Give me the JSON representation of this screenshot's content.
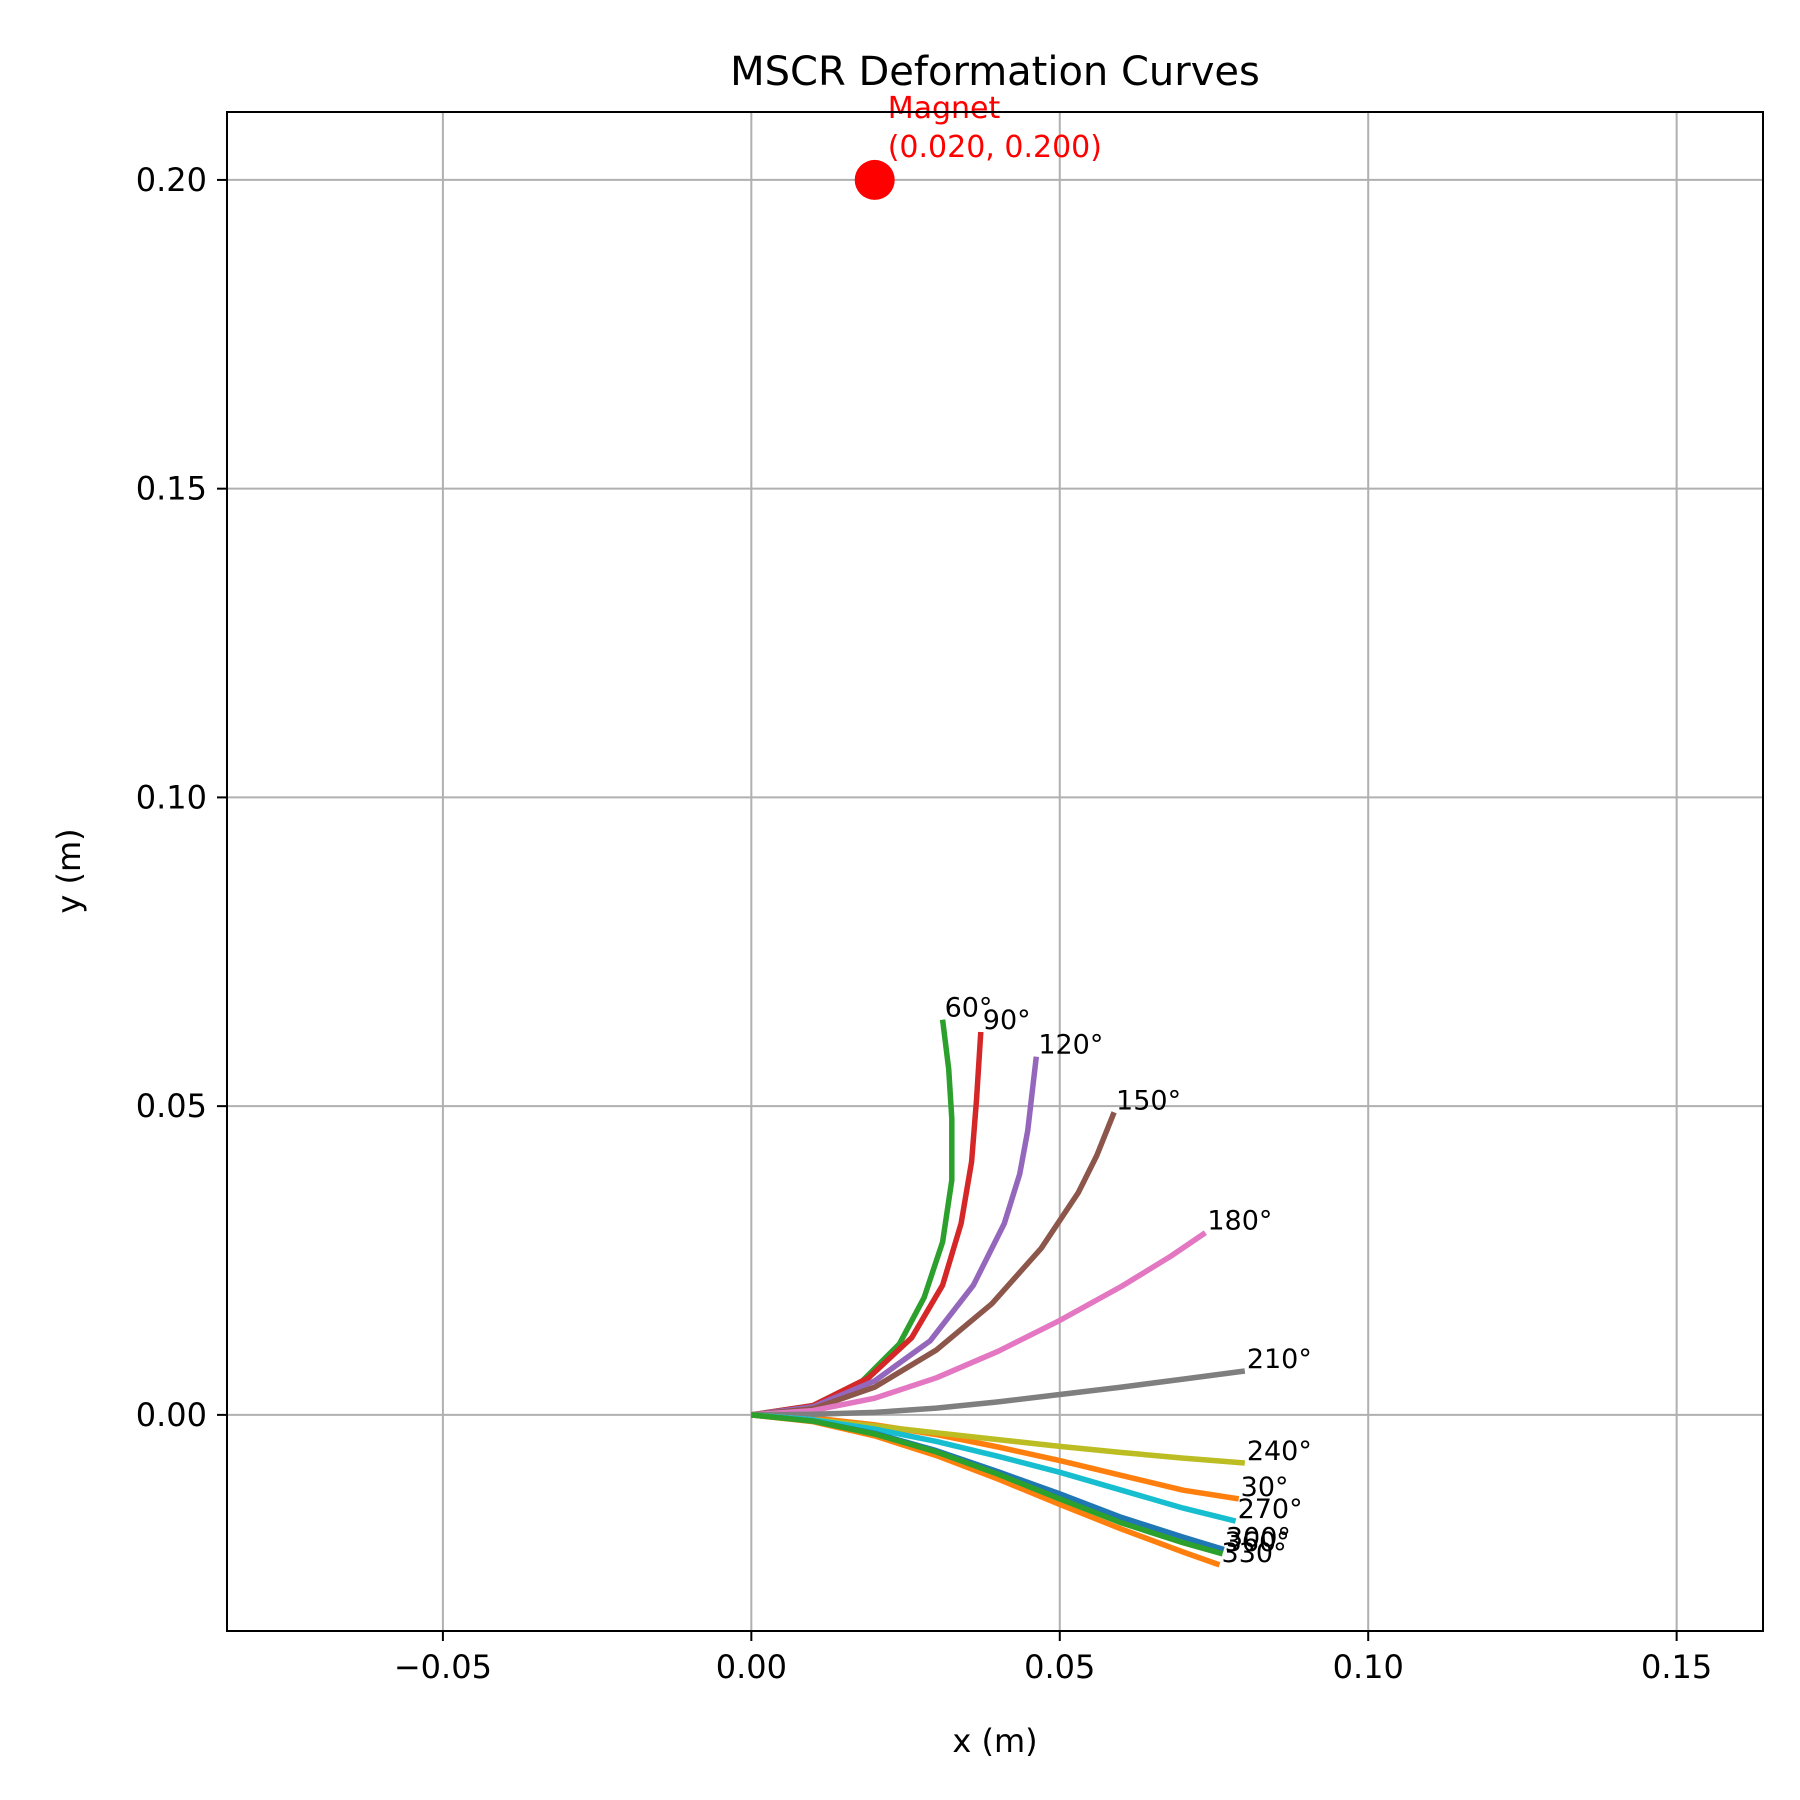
{
  "chart_data": {
    "type": "line",
    "title": "MSCR Deformation Curves",
    "xlabel": "x (m)",
    "ylabel": "y (m)",
    "xlim": [
      -0.085,
      0.164
    ],
    "ylim": [
      -0.035,
      0.211
    ],
    "xticks": [
      -0.05,
      0.0,
      0.05,
      0.1,
      0.15
    ],
    "xtick_labels": [
      "−0.05",
      "0.00",
      "0.05",
      "0.10",
      "0.15"
    ],
    "yticks": [
      0.0,
      0.05,
      0.1,
      0.15,
      0.2
    ],
    "ytick_labels": [
      "0.00",
      "0.05",
      "0.10",
      "0.15",
      "0.20"
    ],
    "grid": true,
    "magnet": {
      "x": 0.02,
      "y": 0.2,
      "label_line1": "Magnet",
      "label_line2": "(0.020, 0.200)",
      "color": "#ff0000"
    },
    "series": [
      {
        "name": "30°",
        "color": "#ff7f0e",
        "points": [
          [
            0,
            0
          ],
          [
            0.01,
            -0.0005
          ],
          [
            0.02,
            -0.0016
          ],
          [
            0.03,
            -0.0032
          ],
          [
            0.04,
            -0.0052
          ],
          [
            0.05,
            -0.0074
          ],
          [
            0.06,
            -0.0098
          ],
          [
            0.07,
            -0.0122
          ],
          [
            0.079,
            -0.0136
          ]
        ]
      },
      {
        "name": "60°",
        "color": "#2ca02c",
        "points": [
          [
            0,
            0
          ],
          [
            0.01,
            0.0015
          ],
          [
            0.018,
            0.0055
          ],
          [
            0.024,
            0.0115
          ],
          [
            0.028,
            0.019
          ],
          [
            0.031,
            0.028
          ],
          [
            0.0325,
            0.038
          ],
          [
            0.0325,
            0.048
          ],
          [
            0.032,
            0.056
          ],
          [
            0.031,
            0.064
          ]
        ]
      },
      {
        "name": "90°",
        "color": "#d62728",
        "points": [
          [
            0,
            0
          ],
          [
            0.01,
            0.0015
          ],
          [
            0.019,
            0.006
          ],
          [
            0.026,
            0.0125
          ],
          [
            0.031,
            0.021
          ],
          [
            0.034,
            0.031
          ],
          [
            0.0357,
            0.041
          ],
          [
            0.0365,
            0.051
          ],
          [
            0.0372,
            0.062
          ]
        ]
      },
      {
        "name": "120°",
        "color": "#9467bd",
        "points": [
          [
            0,
            0
          ],
          [
            0.01,
            0.0013
          ],
          [
            0.02,
            0.0055
          ],
          [
            0.029,
            0.012
          ],
          [
            0.036,
            0.021
          ],
          [
            0.041,
            0.031
          ],
          [
            0.0435,
            0.039
          ],
          [
            0.0448,
            0.046
          ],
          [
            0.0462,
            0.058
          ]
        ]
      },
      {
        "name": "150°",
        "color": "#8c564b",
        "points": [
          [
            0,
            0
          ],
          [
            0.01,
            0.001
          ],
          [
            0.02,
            0.0045
          ],
          [
            0.03,
            0.0105
          ],
          [
            0.039,
            0.018
          ],
          [
            0.047,
            0.027
          ],
          [
            0.053,
            0.036
          ],
          [
            0.056,
            0.042
          ],
          [
            0.0588,
            0.049
          ]
        ]
      },
      {
        "name": "180°",
        "color": "#e377c2",
        "points": [
          [
            0,
            0
          ],
          [
            0.01,
            0.0007
          ],
          [
            0.02,
            0.0027
          ],
          [
            0.03,
            0.006
          ],
          [
            0.04,
            0.0103
          ],
          [
            0.05,
            0.0153
          ],
          [
            0.06,
            0.0208
          ],
          [
            0.068,
            0.0257
          ],
          [
            0.0736,
            0.0295
          ]
        ]
      },
      {
        "name": "210°",
        "color": "#7f7f7f",
        "points": [
          [
            0,
            0
          ],
          [
            0.01,
            0.0001
          ],
          [
            0.02,
            0.0004
          ],
          [
            0.03,
            0.0011
          ],
          [
            0.04,
            0.0021
          ],
          [
            0.05,
            0.0033
          ],
          [
            0.06,
            0.0045
          ],
          [
            0.07,
            0.0058
          ],
          [
            0.08,
            0.0071
          ]
        ]
      },
      {
        "name": "240°",
        "color": "#bcbd22",
        "points": [
          [
            0,
            0
          ],
          [
            0.01,
            -0.0008
          ],
          [
            0.02,
            -0.0018
          ],
          [
            0.03,
            -0.0029
          ],
          [
            0.04,
            -0.004
          ],
          [
            0.05,
            -0.0051
          ],
          [
            0.06,
            -0.0061
          ],
          [
            0.07,
            -0.007
          ],
          [
            0.08,
            -0.0078
          ]
        ]
      },
      {
        "name": "270°",
        "color": "#17becf",
        "points": [
          [
            0,
            0
          ],
          [
            0.01,
            -0.0008
          ],
          [
            0.02,
            -0.0023
          ],
          [
            0.03,
            -0.0043
          ],
          [
            0.04,
            -0.0067
          ],
          [
            0.05,
            -0.0093
          ],
          [
            0.06,
            -0.0122
          ],
          [
            0.07,
            -0.0151
          ],
          [
            0.0785,
            -0.0172
          ]
        ]
      },
      {
        "name": "300°",
        "color": "#1f77b4",
        "points": [
          [
            0,
            0
          ],
          [
            0.01,
            -0.001
          ],
          [
            0.02,
            -0.003
          ],
          [
            0.03,
            -0.0058
          ],
          [
            0.04,
            -0.0092
          ],
          [
            0.05,
            -0.0128
          ],
          [
            0.06,
            -0.0166
          ],
          [
            0.07,
            -0.0198
          ],
          [
            0.0766,
            -0.0218
          ]
        ]
      },
      {
        "name": "330°",
        "color": "#ff7f0e",
        "points": [
          [
            0,
            0
          ],
          [
            0.01,
            -0.0011
          ],
          [
            0.02,
            -0.0034
          ],
          [
            0.03,
            -0.0066
          ],
          [
            0.04,
            -0.0104
          ],
          [
            0.05,
            -0.0145
          ],
          [
            0.06,
            -0.0185
          ],
          [
            0.07,
            -0.0222
          ],
          [
            0.0759,
            -0.0243
          ]
        ]
      },
      {
        "name": "360°",
        "color": "#2ca02c",
        "points": [
          [
            0,
            0
          ],
          [
            0.01,
            -0.001
          ],
          [
            0.02,
            -0.0031
          ],
          [
            0.03,
            -0.006
          ],
          [
            0.04,
            -0.0096
          ],
          [
            0.05,
            -0.0136
          ],
          [
            0.06,
            -0.0175
          ],
          [
            0.07,
            -0.0207
          ],
          [
            0.0764,
            -0.0225
          ]
        ]
      }
    ]
  }
}
